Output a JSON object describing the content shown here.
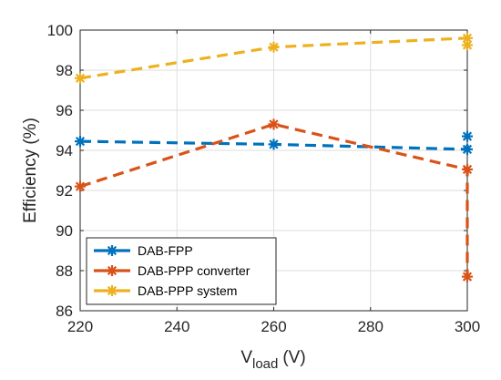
{
  "chart_data": {
    "type": "line",
    "xlabel": {
      "main": "V",
      "sub": "load",
      "unit": "(V)"
    },
    "ylabel": "Efficiency (%)",
    "xlim": [
      220,
      300
    ],
    "ylim": [
      86,
      100
    ],
    "xticks": [
      220,
      240,
      260,
      280,
      300
    ],
    "yticks": [
      86,
      88,
      90,
      92,
      94,
      96,
      98,
      100
    ],
    "grid": true,
    "legend_position": "bottom-left",
    "series": [
      {
        "name": "DAB-FPP",
        "color": "#0072BD",
        "x": [
          220,
          260,
          300,
          300
        ],
        "y": [
          94.45,
          94.3,
          94.05,
          94.7
        ]
      },
      {
        "name": "DAB-PPP converter",
        "color": "#D95319",
        "x": [
          220,
          260,
          300,
          300
        ],
        "y": [
          92.2,
          95.3,
          93.05,
          87.7
        ]
      },
      {
        "name": "DAB-PPP system",
        "color": "#EDB120",
        "x": [
          220,
          260,
          300,
          300
        ],
        "y": [
          97.6,
          99.15,
          99.6,
          99.25
        ]
      }
    ]
  }
}
